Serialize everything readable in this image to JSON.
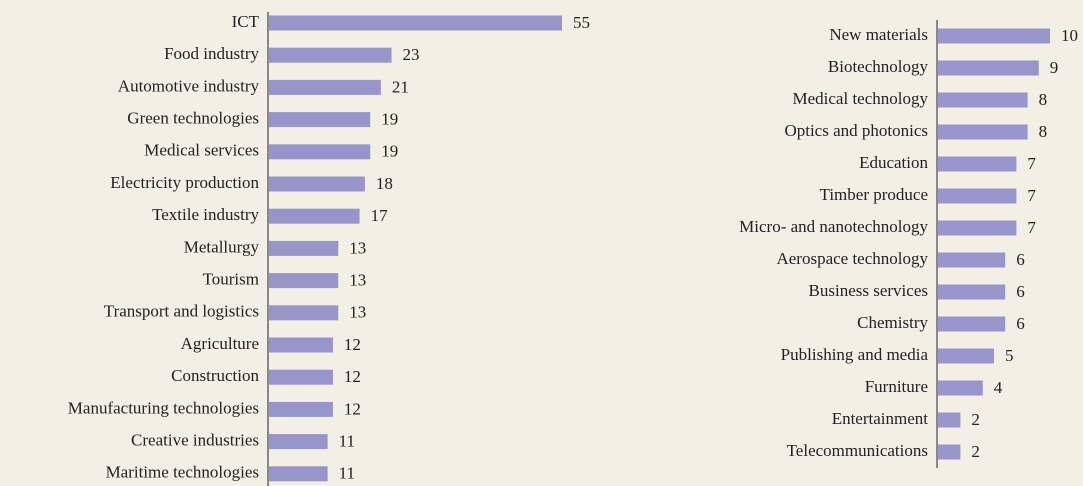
{
  "chart_data": [
    {
      "type": "barh",
      "color": "#9795cb",
      "categories": [
        "ICT",
        "Food industry",
        "Automotive industry",
        "Green technologies",
        "Medical services",
        "Electricity production",
        "Textile industry",
        "Metallurgy",
        "Tourism",
        "Transport and logistics",
        "Agriculture",
        "Construction",
        "Manufacturing technologies",
        "Creative industries",
        "Maritime technologies"
      ],
      "values": [
        55,
        23,
        21,
        19,
        19,
        18,
        17,
        13,
        13,
        13,
        12,
        12,
        12,
        11,
        11
      ]
    },
    {
      "type": "barh",
      "color": "#9795cb",
      "categories": [
        "New materials",
        "Biotechnology",
        "Medical technology",
        "Optics and photonics",
        "Education",
        "Timber produce",
        "Micro- and nanotechnology",
        "Aerospace technology",
        "Business services",
        "Chemistry",
        "Publishing and media",
        "Furniture",
        "Entertainment",
        "Telecommunications"
      ],
      "values": [
        10,
        9,
        8,
        8,
        7,
        7,
        7,
        6,
        6,
        6,
        5,
        4,
        2,
        2
      ]
    }
  ]
}
